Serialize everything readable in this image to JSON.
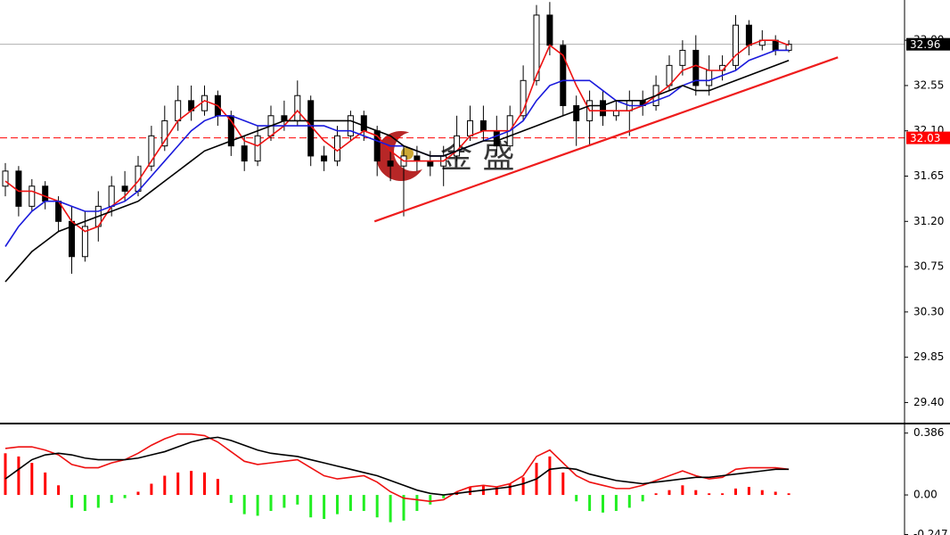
{
  "chart_data": [
    {
      "type": "candlestick",
      "open": [
        31.55,
        31.7,
        31.35,
        31.55,
        31.4,
        31.2,
        30.85,
        31.15,
        31.35,
        31.55,
        31.5,
        31.75,
        31.95,
        32.2,
        32.4,
        32.3,
        32.45,
        32.25,
        31.95,
        31.8,
        32.05,
        32.25,
        32.2,
        32.4,
        31.85,
        31.8,
        32.05,
        32.25,
        32.1,
        31.8,
        31.75,
        31.85,
        31.8,
        31.75,
        31.85,
        32.05,
        32.2,
        32.1,
        31.95,
        32.25,
        32.6,
        33.25,
        32.95,
        32.35,
        32.2,
        32.4,
        32.25,
        32.3,
        32.4,
        32.35,
        32.55,
        32.75,
        32.9,
        32.55,
        32.7,
        32.75,
        33.15,
        32.95,
        33.0,
        32.9
      ],
      "high": [
        31.78,
        31.75,
        31.62,
        31.6,
        31.45,
        31.35,
        31.3,
        31.5,
        31.65,
        31.7,
        31.85,
        32.15,
        32.35,
        32.55,
        32.55,
        32.55,
        32.5,
        32.3,
        32.05,
        32.15,
        32.35,
        32.4,
        32.6,
        32.45,
        31.95,
        32.15,
        32.3,
        32.3,
        32.15,
        31.9,
        31.95,
        31.95,
        31.9,
        31.95,
        32.25,
        32.35,
        32.35,
        32.25,
        32.35,
        32.75,
        33.35,
        33.38,
        33.0,
        32.45,
        32.5,
        32.5,
        32.4,
        32.5,
        32.5,
        32.65,
        32.85,
        33.0,
        33.05,
        32.85,
        32.85,
        33.25,
        33.2,
        33.1,
        33.05,
        33.0
      ],
      "low": [
        31.45,
        31.25,
        31.3,
        31.32,
        31.1,
        30.68,
        30.8,
        31.0,
        31.25,
        31.4,
        31.45,
        31.7,
        31.9,
        32.1,
        32.2,
        32.25,
        32.15,
        31.85,
        31.7,
        31.75,
        32.0,
        32.1,
        32.15,
        31.75,
        31.7,
        31.75,
        32.0,
        32.0,
        31.65,
        31.6,
        31.25,
        31.7,
        31.65,
        31.55,
        31.8,
        32.0,
        32.0,
        31.85,
        31.9,
        32.2,
        32.55,
        32.85,
        32.25,
        31.95,
        31.95,
        32.15,
        32.2,
        32.05,
        32.25,
        32.3,
        32.5,
        32.65,
        32.45,
        32.45,
        32.6,
        32.7,
        32.85,
        32.9,
        32.85,
        32.88
      ],
      "close": [
        31.7,
        31.35,
        31.55,
        31.4,
        31.2,
        30.85,
        31.15,
        31.35,
        31.55,
        31.5,
        31.75,
        32.05,
        32.2,
        32.4,
        32.3,
        32.45,
        32.25,
        31.95,
        31.8,
        32.05,
        32.25,
        32.2,
        32.45,
        31.85,
        31.8,
        32.05,
        32.25,
        32.1,
        31.8,
        31.75,
        31.85,
        31.8,
        31.75,
        31.85,
        32.05,
        32.2,
        32.1,
        31.95,
        32.25,
        32.6,
        33.25,
        32.95,
        32.35,
        32.2,
        32.4,
        32.25,
        32.3,
        32.4,
        32.35,
        32.55,
        32.75,
        32.9,
        32.55,
        32.7,
        32.75,
        33.15,
        32.95,
        33.0,
        32.9,
        32.96
      ],
      "up_color": "#ffffff",
      "down_color": "#000000",
      "edge_color": "#000000",
      "series": [
        {
          "color": "#ee1111",
          "values": [
            31.6,
            31.5,
            31.5,
            31.45,
            31.4,
            31.2,
            31.1,
            31.15,
            31.35,
            31.45,
            31.6,
            31.8,
            32.0,
            32.2,
            32.3,
            32.4,
            32.35,
            32.2,
            32.0,
            31.95,
            32.05,
            32.15,
            32.3,
            32.15,
            32.0,
            31.9,
            32.0,
            32.1,
            32.05,
            31.9,
            31.8,
            31.8,
            31.8,
            31.8,
            31.9,
            32.05,
            32.1,
            32.1,
            32.1,
            32.3,
            32.65,
            32.95,
            32.85,
            32.55,
            32.3,
            32.3,
            32.3,
            32.3,
            32.35,
            32.45,
            32.55,
            32.7,
            32.75,
            32.7,
            32.7,
            32.85,
            32.95,
            33.0,
            33.0,
            32.95
          ]
        },
        {
          "color": "#1a1adc",
          "values": [
            30.95,
            31.15,
            31.3,
            31.4,
            31.4,
            31.35,
            31.3,
            31.3,
            31.35,
            31.4,
            31.5,
            31.65,
            31.8,
            31.95,
            32.1,
            32.2,
            32.25,
            32.25,
            32.2,
            32.15,
            32.15,
            32.15,
            32.15,
            32.15,
            32.15,
            32.1,
            32.1,
            32.05,
            32.0,
            31.95,
            31.95,
            31.9,
            31.85,
            31.85,
            31.9,
            31.95,
            32.0,
            32.05,
            32.1,
            32.2,
            32.4,
            32.55,
            32.6,
            32.6,
            32.6,
            32.5,
            32.4,
            32.35,
            32.35,
            32.4,
            32.45,
            32.55,
            32.6,
            32.6,
            32.65,
            32.7,
            32.8,
            32.85,
            32.9,
            32.9
          ]
        },
        {
          "color": "#000000",
          "values": [
            30.6,
            30.75,
            30.9,
            31.0,
            31.1,
            31.15,
            31.2,
            31.25,
            31.3,
            31.35,
            31.4,
            31.5,
            31.6,
            31.7,
            31.8,
            31.9,
            31.95,
            32.0,
            32.05,
            32.1,
            32.15,
            32.2,
            32.2,
            32.2,
            32.2,
            32.2,
            32.2,
            32.15,
            32.1,
            32.05,
            31.95,
            31.9,
            31.85,
            31.85,
            31.9,
            31.95,
            32.0,
            32.0,
            32.05,
            32.1,
            32.15,
            32.2,
            32.25,
            32.3,
            32.35,
            32.35,
            32.4,
            32.4,
            32.4,
            32.45,
            32.5,
            32.55,
            32.5,
            32.5,
            32.55,
            32.6,
            32.65,
            32.7,
            32.75,
            32.8
          ]
        }
      ],
      "trendline": {
        "x": [
          27.8,
          62.7
        ],
        "y": [
          31.2,
          32.83
        ],
        "color": "#ee1c1c"
      },
      "price_lines": [
        {
          "value": 32.96,
          "color": "#b0b0b0",
          "label_color": "#000000",
          "dashed": false
        },
        {
          "value": 32.03,
          "color": "#ff0000",
          "label_color": "#ff0000",
          "dashed": true
        }
      ],
      "watermark": "金 盛",
      "ylim": [
        29.2,
        33.4
      ],
      "yticks": [
        {
          "value": 29.4,
          "label": "29.40"
        },
        29.85,
        {
          "value": 30.3,
          "label": "30.30"
        },
        30.75,
        {
          "value": 31.2,
          "label": "31.20"
        },
        31.65,
        {
          "value": 32.1,
          "label": "32.10"
        },
        32.55,
        {
          "value": 33.0,
          "label": "33.00"
        }
      ]
    },
    {
      "type": "macd",
      "histogram": [
        0.26,
        0.24,
        0.2,
        0.14,
        0.06,
        -0.08,
        -0.1,
        -0.08,
        -0.05,
        -0.02,
        0.02,
        0.07,
        0.12,
        0.14,
        0.15,
        0.14,
        0.1,
        -0.05,
        -0.12,
        -0.13,
        -0.1,
        -0.08,
        -0.06,
        -0.14,
        -0.15,
        -0.12,
        -0.1,
        -0.1,
        -0.14,
        -0.17,
        -0.16,
        -0.1,
        -0.06,
        -0.02,
        0.02,
        0.05,
        0.06,
        0.05,
        0.07,
        0.11,
        0.2,
        0.24,
        0.14,
        -0.04,
        -0.1,
        -0.11,
        -0.1,
        -0.08,
        -0.04,
        0.01,
        0.03,
        0.06,
        0.03,
        0.01,
        0.01,
        0.04,
        0.05,
        0.03,
        0.02,
        0.01
      ],
      "up_color": "#ff0000",
      "down_color": "#22ee22",
      "series": [
        {
          "color": "#ee1111",
          "values": [
            0.29,
            0.3,
            0.3,
            0.28,
            0.25,
            0.19,
            0.17,
            0.17,
            0.2,
            0.22,
            0.26,
            0.31,
            0.35,
            0.38,
            0.38,
            0.37,
            0.33,
            0.27,
            0.21,
            0.19,
            0.2,
            0.21,
            0.22,
            0.17,
            0.12,
            0.1,
            0.11,
            0.12,
            0.08,
            0.02,
            -0.02,
            -0.03,
            -0.04,
            -0.03,
            0.02,
            0.05,
            0.06,
            0.05,
            0.07,
            0.12,
            0.24,
            0.28,
            0.2,
            0.12,
            0.08,
            0.06,
            0.04,
            0.04,
            0.06,
            0.09,
            0.12,
            0.15,
            0.12,
            0.1,
            0.11,
            0.16,
            0.17,
            0.17,
            0.17,
            0.16
          ]
        },
        {
          "color": "#000000",
          "values": [
            0.1,
            0.16,
            0.22,
            0.25,
            0.26,
            0.25,
            0.23,
            0.22,
            0.22,
            0.22,
            0.23,
            0.25,
            0.27,
            0.3,
            0.33,
            0.35,
            0.36,
            0.34,
            0.31,
            0.28,
            0.26,
            0.25,
            0.24,
            0.22,
            0.2,
            0.18,
            0.16,
            0.14,
            0.12,
            0.09,
            0.06,
            0.03,
            0.01,
            0.0,
            0.01,
            0.02,
            0.03,
            0.04,
            0.05,
            0.07,
            0.1,
            0.16,
            0.17,
            0.16,
            0.13,
            0.11,
            0.09,
            0.08,
            0.07,
            0.08,
            0.09,
            0.1,
            0.11,
            0.11,
            0.12,
            0.13,
            0.14,
            0.15,
            0.16,
            0.16
          ]
        }
      ],
      "ylim": [
        -0.25,
        0.44
      ],
      "yticks": [
        0.386,
        {
          "value": 0,
          "label": "0.00"
        },
        -0.247
      ]
    }
  ]
}
